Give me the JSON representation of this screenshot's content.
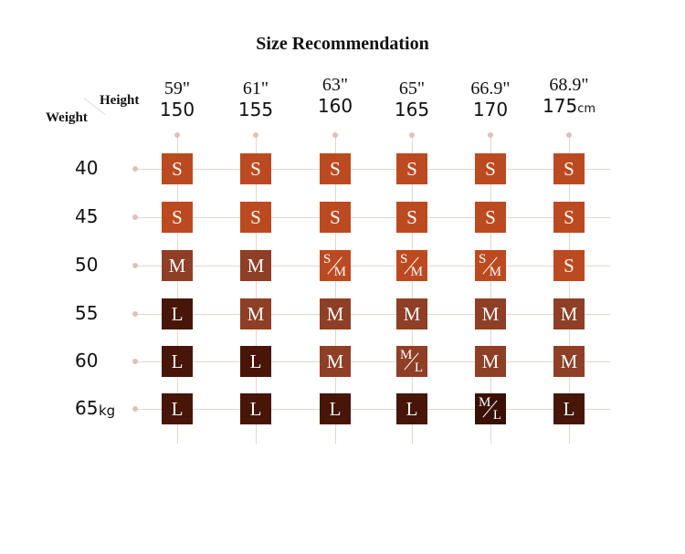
{
  "title": "Size Recommendation",
  "corner": {
    "height_label": "Height",
    "weight_label": "Weight"
  },
  "heights": [
    {
      "inches": "59\"",
      "cm": "150",
      "unit": ""
    },
    {
      "inches": "61\"",
      "cm": "155",
      "unit": ""
    },
    {
      "inches": "63\"",
      "cm": "160",
      "unit": ""
    },
    {
      "inches": "65\"",
      "cm": "165",
      "unit": ""
    },
    {
      "inches": "66.9\"",
      "cm": "170",
      "unit": ""
    },
    {
      "inches": "68.9\"",
      "cm": "175",
      "unit": "cm"
    }
  ],
  "weights": [
    {
      "value": "40",
      "unit": ""
    },
    {
      "value": "45",
      "unit": ""
    },
    {
      "value": "50",
      "unit": ""
    },
    {
      "value": "55",
      "unit": ""
    },
    {
      "value": "60",
      "unit": ""
    },
    {
      "value": "65",
      "unit": "kg"
    }
  ],
  "grid": [
    [
      "S",
      "S",
      "S",
      "S",
      "S",
      "S"
    ],
    [
      "S",
      "S",
      "S",
      "S",
      "S",
      "S"
    ],
    [
      "M",
      "M",
      "S/M",
      "S/M",
      "S/M",
      "S"
    ],
    [
      "L",
      "M",
      "M",
      "M",
      "M",
      "M"
    ],
    [
      "L",
      "L",
      "M",
      "M/L",
      "M",
      "M"
    ],
    [
      "L",
      "L",
      "L",
      "L",
      "M/L",
      "L"
    ]
  ],
  "colors": {
    "S": "#bc4a20",
    "M": "#8e3f25",
    "L": "#471608",
    "grid_line": "#e3d5cf",
    "dot": "#d9c3bb"
  }
}
